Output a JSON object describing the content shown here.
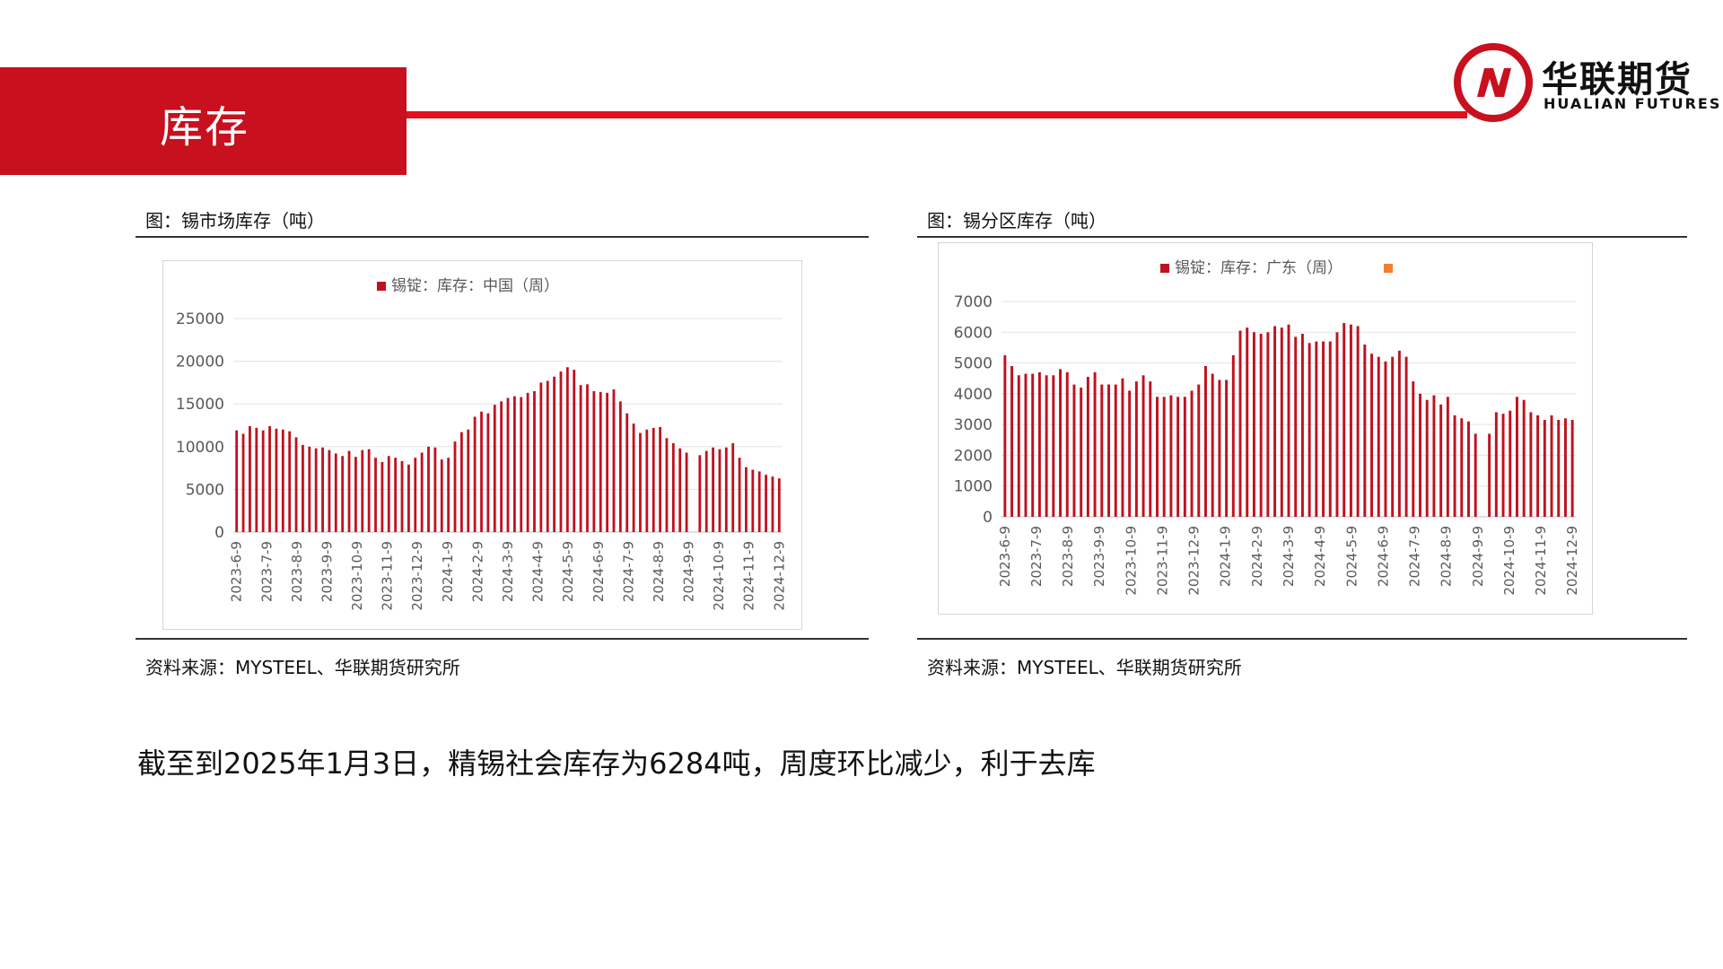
{
  "header": {
    "title": "库存"
  },
  "logo": {
    "name_cn": "华联期货",
    "name_en": "HUALIAN FUTURES",
    "color": "#c8101e"
  },
  "colors": {
    "accent": "#c8101e",
    "bar": "#c0111f",
    "legend_alt": "#f08030"
  },
  "charts": [
    {
      "caption": "图：锡市场库存（吨）",
      "source": "资料来源：MYSTEEL、华联期货研究所"
    },
    {
      "caption": "图：锡分区库存（吨）",
      "source": "资料来源：MYSTEEL、华联期货研究所"
    }
  ],
  "conclusion": "截至到2025年1月3日，精锡社会库存为6284吨，周度环比减少，利于去库",
  "chart_data": [
    {
      "type": "bar",
      "legend": [
        "锡锭：库存：中国（周）"
      ],
      "ylim": [
        0,
        25000
      ],
      "yticks": [
        0,
        5000,
        10000,
        15000,
        20000,
        25000
      ],
      "xticklabels": [
        "2023-6-9",
        "2023-7-9",
        "2023-8-9",
        "2023-9-9",
        "2023-10-9",
        "2023-11-9",
        "2023-12-9",
        "2024-1-9",
        "2024-2-9",
        "2024-3-9",
        "2024-4-9",
        "2024-5-9",
        "2024-6-9",
        "2024-7-9",
        "2024-8-9",
        "2024-9-9",
        "2024-10-9",
        "2024-11-9",
        "2024-12-9"
      ],
      "series": [
        {
          "name": "锡锭：库存：中国（周）",
          "values": [
            11900,
            11500,
            12400,
            12200,
            11900,
            12400,
            12100,
            12000,
            11800,
            11100,
            10200,
            10000,
            9800,
            9900,
            9600,
            9200,
            8900,
            9500,
            8800,
            9600,
            9700,
            8700,
            8200,
            8900,
            8700,
            8300,
            7900,
            8700,
            9300,
            10000,
            9900,
            8500,
            8700,
            10600,
            11700,
            12000,
            13500,
            14100,
            13900,
            14900,
            15300,
            15700,
            15900,
            15800,
            16300,
            16500,
            17500,
            17700,
            18200,
            18800,
            19300,
            19000,
            17200,
            17300,
            16500,
            16400,
            16300,
            16700,
            15300,
            13900,
            12700,
            11600,
            12000,
            12200,
            12300,
            11000,
            10400,
            9800,
            9300,
            0,
            9000,
            9500,
            9900,
            9700,
            9900,
            10400,
            8700,
            7600,
            7300,
            7100,
            6700,
            6500,
            6284
          ]
        }
      ],
      "grid": true,
      "legend_position": "top"
    },
    {
      "type": "bar",
      "legend": [
        "锡锭：库存：广东（周）",
        ""
      ],
      "ylim": [
        0,
        7000
      ],
      "yticks": [
        0,
        1000,
        2000,
        3000,
        4000,
        5000,
        6000,
        7000
      ],
      "xticklabels": [
        "2023-6-9",
        "2023-7-9",
        "2023-8-9",
        "2023-9-9",
        "2023-10-9",
        "2023-11-9",
        "2023-12-9",
        "2024-1-9",
        "2024-2-9",
        "2024-3-9",
        "2024-4-9",
        "2024-5-9",
        "2024-6-9",
        "2024-7-9",
        "2024-8-9",
        "2024-9-9",
        "2024-10-9",
        "2024-11-9",
        "2024-12-9"
      ],
      "series": [
        {
          "name": "锡锭：库存：广东（周）",
          "values": [
            5250,
            4900,
            4600,
            4650,
            4650,
            4700,
            4600,
            4600,
            4800,
            4700,
            4300,
            4200,
            4550,
            4700,
            4300,
            4300,
            4300,
            4500,
            4100,
            4400,
            4600,
            4400,
            3900,
            3900,
            3950,
            3900,
            3900,
            4100,
            4300,
            4900,
            4650,
            4450,
            4450,
            5250,
            6050,
            6150,
            6000,
            5950,
            6000,
            6200,
            6150,
            6250,
            5850,
            5950,
            5650,
            5700,
            5700,
            5700,
            6000,
            6300,
            6250,
            6200,
            5600,
            5300,
            5200,
            5050,
            5200,
            5400,
            5200,
            4400,
            4000,
            3800,
            3950,
            3650,
            3900,
            3300,
            3200,
            3100,
            2700,
            0,
            2700,
            3400,
            3350,
            3450,
            3900,
            3800,
            3400,
            3300,
            3150,
            3300,
            3150,
            3200,
            3150
          ]
        }
      ],
      "grid": true,
      "legend_position": "top"
    }
  ]
}
